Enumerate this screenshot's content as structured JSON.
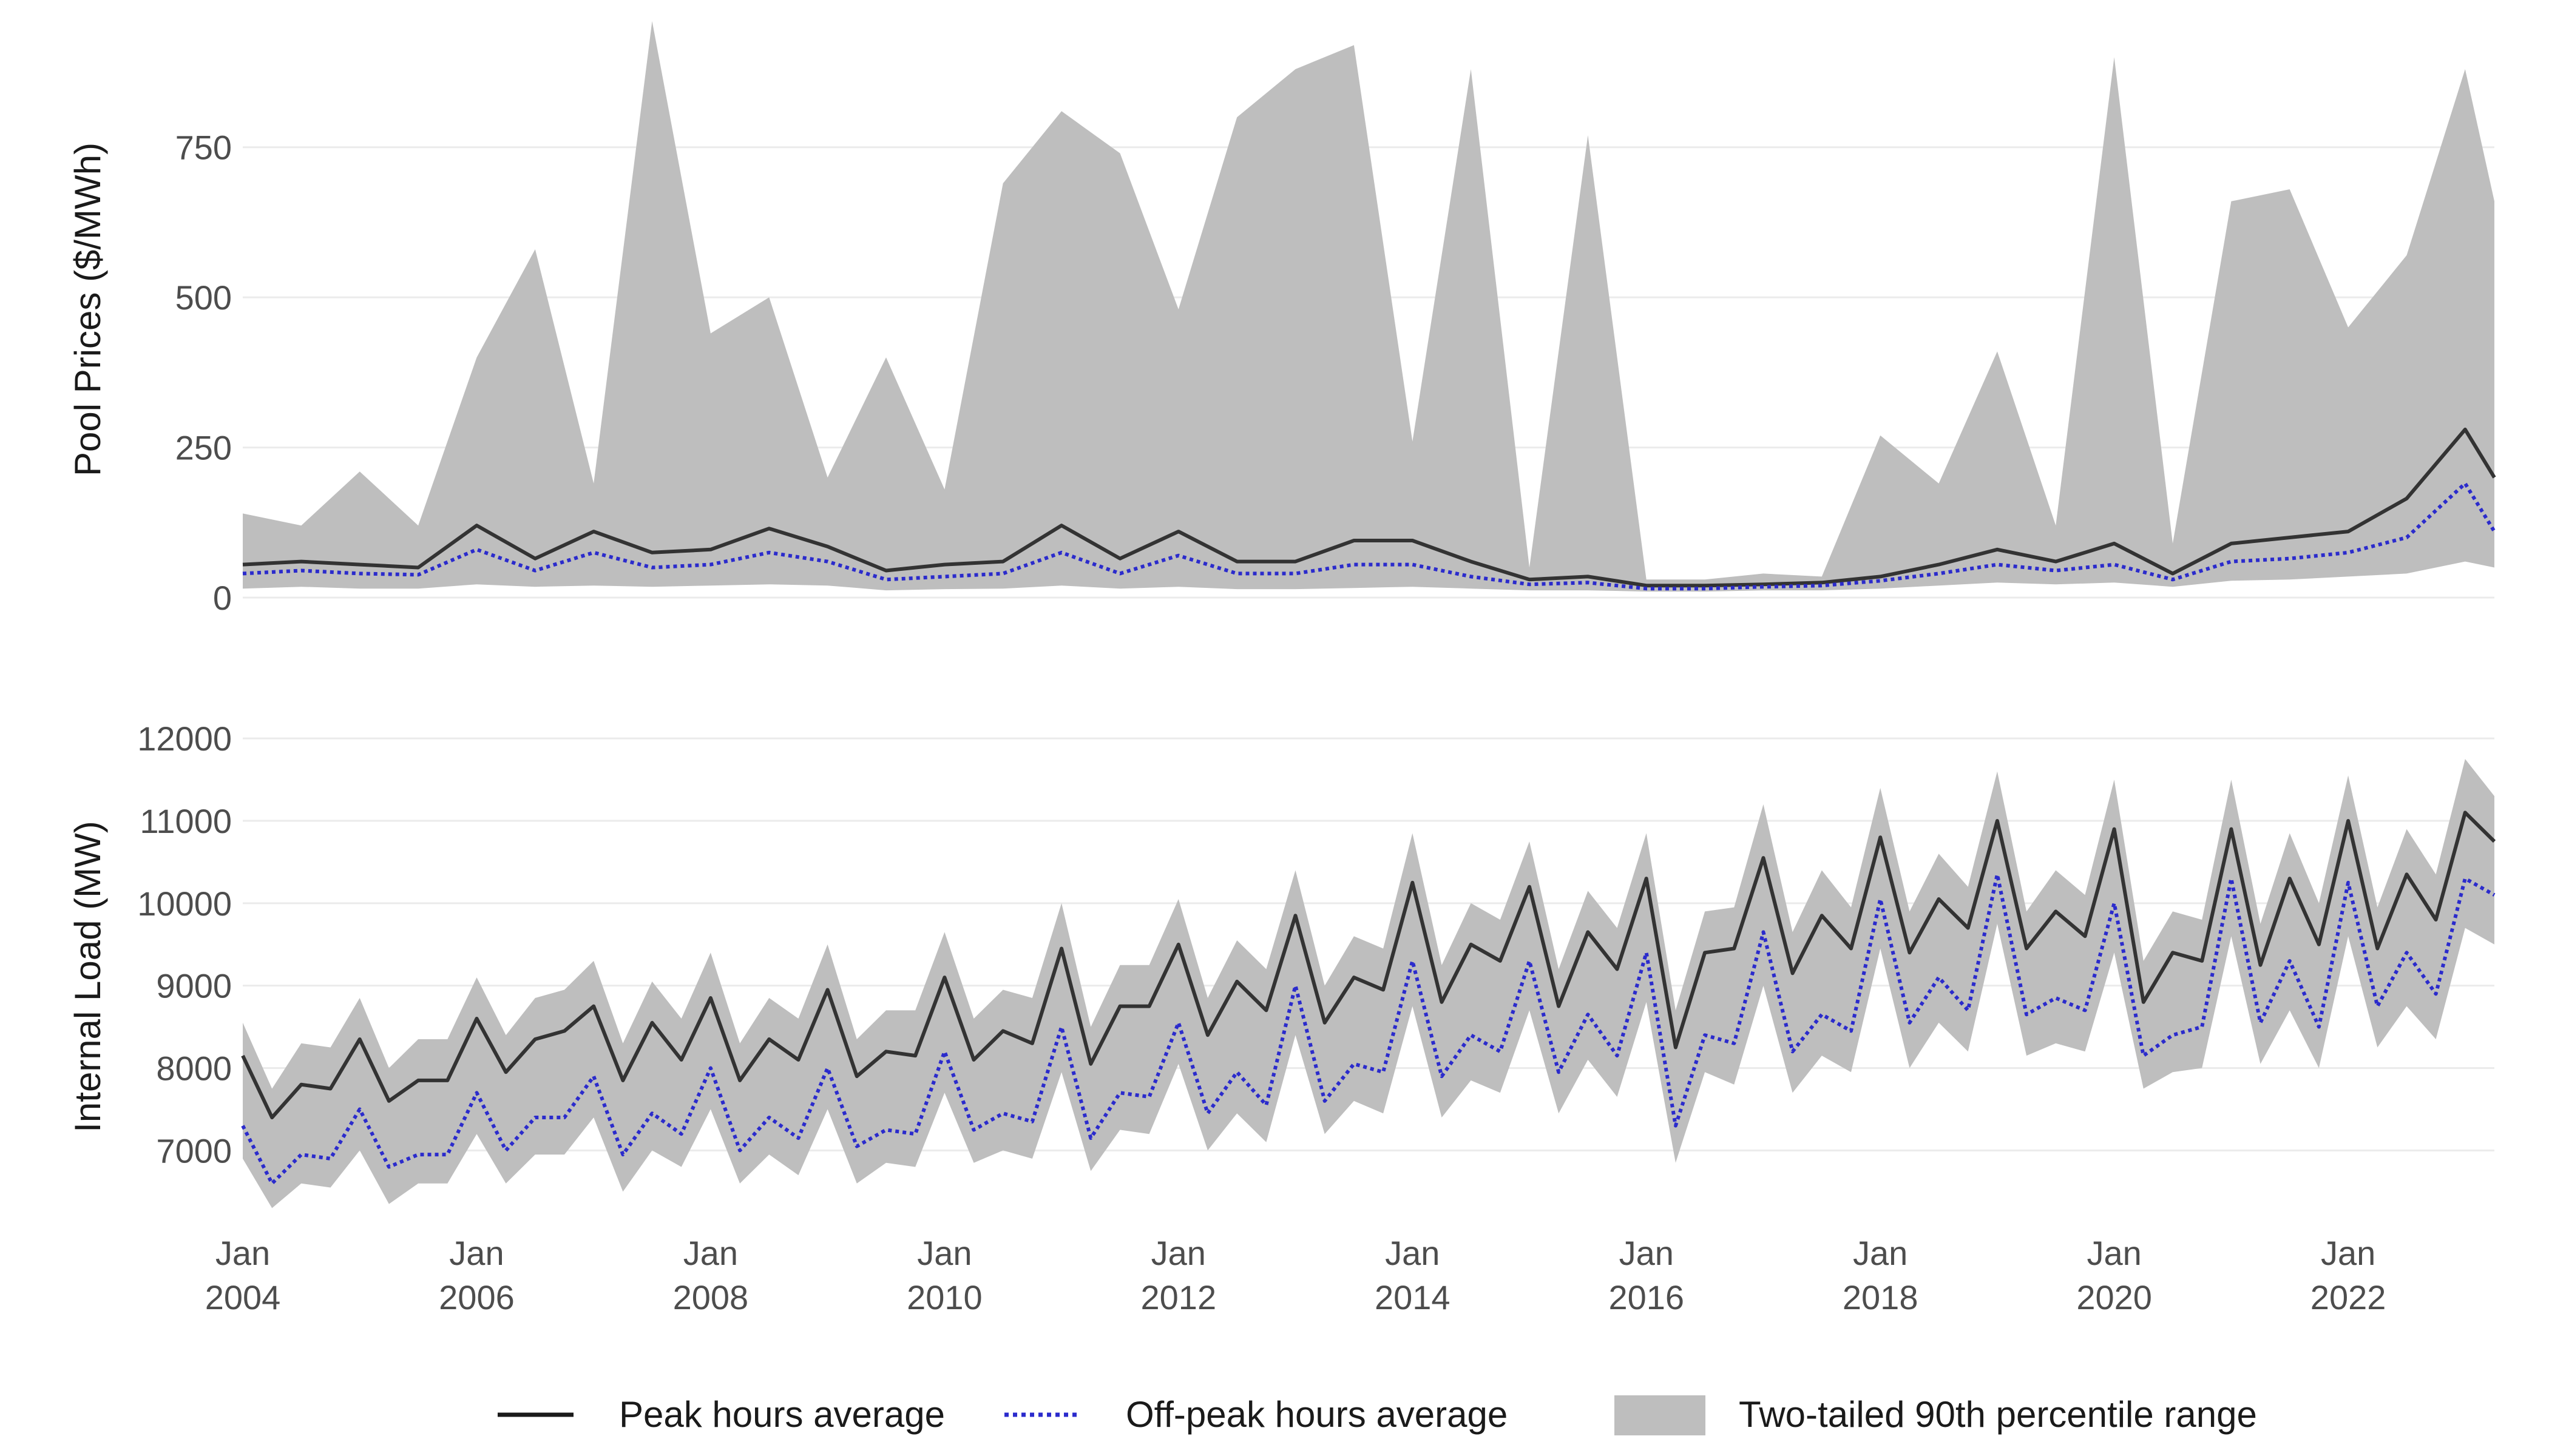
{
  "chart_data": [
    {
      "type": "line",
      "ylabel": "Pool Prices ($/MWh)",
      "xlim": [
        "2004-01",
        "2023-04"
      ],
      "ylim": [
        0,
        975
      ],
      "y_ticks": [
        0,
        250,
        500,
        750
      ],
      "y_tick_labels": [
        "0",
        "250",
        "500",
        "750"
      ],
      "grid": true,
      "series": [
        {
          "name": "Peak hours average",
          "style": "solid",
          "color": "#333333",
          "x": [
            "2004-01",
            "2004-07",
            "2005-01",
            "2005-07",
            "2006-01",
            "2006-07",
            "2007-01",
            "2007-07",
            "2008-01",
            "2008-07",
            "2009-01",
            "2009-07",
            "2010-01",
            "2010-07",
            "2011-01",
            "2011-07",
            "2012-01",
            "2012-07",
            "2013-01",
            "2013-07",
            "2014-01",
            "2014-07",
            "2015-01",
            "2015-07",
            "2016-01",
            "2016-07",
            "2017-01",
            "2017-07",
            "2018-01",
            "2018-07",
            "2019-01",
            "2019-07",
            "2020-01",
            "2020-07",
            "2021-01",
            "2021-07",
            "2022-01",
            "2022-07",
            "2023-01",
            "2023-04"
          ],
          "values": [
            55,
            60,
            55,
            50,
            120,
            65,
            110,
            75,
            80,
            115,
            85,
            45,
            55,
            60,
            120,
            65,
            110,
            60,
            60,
            95,
            95,
            60,
            30,
            35,
            20,
            20,
            22,
            25,
            35,
            55,
            80,
            60,
            90,
            40,
            90,
            100,
            110,
            165,
            280,
            200
          ]
        },
        {
          "name": "Off-peak hours average",
          "style": "dotted",
          "color": "#2b2bcc",
          "x": [
            "2004-01",
            "2004-07",
            "2005-01",
            "2005-07",
            "2006-01",
            "2006-07",
            "2007-01",
            "2007-07",
            "2008-01",
            "2008-07",
            "2009-01",
            "2009-07",
            "2010-01",
            "2010-07",
            "2011-01",
            "2011-07",
            "2012-01",
            "2012-07",
            "2013-01",
            "2013-07",
            "2014-01",
            "2014-07",
            "2015-01",
            "2015-07",
            "2016-01",
            "2016-07",
            "2017-01",
            "2017-07",
            "2018-01",
            "2018-07",
            "2019-01",
            "2019-07",
            "2020-01",
            "2020-07",
            "2021-01",
            "2021-07",
            "2022-01",
            "2022-07",
            "2023-01",
            "2023-04"
          ],
          "values": [
            40,
            45,
            40,
            38,
            80,
            45,
            75,
            50,
            55,
            75,
            60,
            30,
            35,
            40,
            75,
            40,
            70,
            40,
            40,
            55,
            55,
            35,
            22,
            25,
            15,
            15,
            18,
            20,
            28,
            40,
            55,
            45,
            55,
            30,
            60,
            65,
            75,
            100,
            190,
            110
          ]
        },
        {
          "name": "Two-tailed 90th percentile range",
          "type": "area",
          "color": "#bebebe",
          "x": [
            "2004-01",
            "2004-07",
            "2005-01",
            "2005-07",
            "2006-01",
            "2006-07",
            "2007-01",
            "2007-07",
            "2008-01",
            "2008-07",
            "2009-01",
            "2009-07",
            "2010-01",
            "2010-07",
            "2011-01",
            "2011-07",
            "2012-01",
            "2012-07",
            "2013-01",
            "2013-07",
            "2014-01",
            "2014-07",
            "2015-01",
            "2015-07",
            "2016-01",
            "2016-07",
            "2017-01",
            "2017-07",
            "2018-01",
            "2018-07",
            "2019-01",
            "2019-07",
            "2020-01",
            "2020-07",
            "2021-01",
            "2021-07",
            "2022-01",
            "2022-07",
            "2023-01",
            "2023-04"
          ],
          "lower": [
            15,
            18,
            15,
            15,
            22,
            18,
            20,
            18,
            20,
            22,
            20,
            12,
            14,
            15,
            20,
            15,
            18,
            14,
            14,
            16,
            18,
            15,
            12,
            12,
            10,
            10,
            12,
            12,
            15,
            20,
            25,
            22,
            25,
            18,
            28,
            30,
            35,
            40,
            60,
            50
          ],
          "upper": [
            140,
            120,
            210,
            120,
            400,
            580,
            190,
            960,
            440,
            500,
            200,
            400,
            180,
            690,
            810,
            740,
            480,
            800,
            880,
            920,
            260,
            880,
            50,
            770,
            30,
            30,
            40,
            35,
            270,
            190,
            410,
            120,
            900,
            90,
            660,
            680,
            450,
            570,
            880,
            660
          ]
        }
      ]
    },
    {
      "type": "line",
      "ylabel": "Internal Load (MW)",
      "xlim": [
        "2004-01",
        "2023-04"
      ],
      "ylim": [
        6200,
        12200
      ],
      "y_ticks": [
        7000,
        8000,
        9000,
        10000,
        11000,
        12000
      ],
      "y_tick_labels": [
        "7000",
        "8000",
        "9000",
        "10000",
        "11000",
        "12000"
      ],
      "x_tick_labels": [
        [
          "Jan",
          "2004"
        ],
        [
          "Jan",
          "2006"
        ],
        [
          "Jan",
          "2008"
        ],
        [
          "Jan",
          "2010"
        ],
        [
          "Jan",
          "2012"
        ],
        [
          "Jan",
          "2014"
        ],
        [
          "Jan",
          "2016"
        ],
        [
          "Jan",
          "2018"
        ],
        [
          "Jan",
          "2020"
        ],
        [
          "Jan",
          "2022"
        ]
      ],
      "x_ticks": [
        "2004-01",
        "2006-01",
        "2008-01",
        "2010-01",
        "2012-01",
        "2014-01",
        "2016-01",
        "2018-01",
        "2020-01",
        "2022-01"
      ],
      "grid": true,
      "series": [
        {
          "name": "Peak hours average",
          "style": "solid",
          "color": "#333333",
          "x": [
            "2004-01",
            "2004-04",
            "2004-07",
            "2004-10",
            "2005-01",
            "2005-04",
            "2005-07",
            "2005-10",
            "2006-01",
            "2006-04",
            "2006-07",
            "2006-10",
            "2007-01",
            "2007-04",
            "2007-07",
            "2007-10",
            "2008-01",
            "2008-04",
            "2008-07",
            "2008-10",
            "2009-01",
            "2009-04",
            "2009-07",
            "2009-10",
            "2010-01",
            "2010-04",
            "2010-07",
            "2010-10",
            "2011-01",
            "2011-04",
            "2011-07",
            "2011-10",
            "2012-01",
            "2012-04",
            "2012-07",
            "2012-10",
            "2013-01",
            "2013-04",
            "2013-07",
            "2013-10",
            "2014-01",
            "2014-04",
            "2014-07",
            "2014-10",
            "2015-01",
            "2015-04",
            "2015-07",
            "2015-10",
            "2016-01",
            "2016-04",
            "2016-07",
            "2016-10",
            "2017-01",
            "2017-04",
            "2017-07",
            "2017-10",
            "2018-01",
            "2018-04",
            "2018-07",
            "2018-10",
            "2019-01",
            "2019-04",
            "2019-07",
            "2019-10",
            "2020-01",
            "2020-04",
            "2020-07",
            "2020-10",
            "2021-01",
            "2021-04",
            "2021-07",
            "2021-10",
            "2022-01",
            "2022-04",
            "2022-07",
            "2022-10",
            "2023-01",
            "2023-04"
          ],
          "values": [
            8150,
            7400,
            7800,
            7750,
            8350,
            7600,
            7850,
            7850,
            8600,
            7950,
            8350,
            8450,
            8750,
            7850,
            8550,
            8100,
            8850,
            7850,
            8350,
            8100,
            8950,
            7900,
            8200,
            8150,
            9100,
            8100,
            8450,
            8300,
            9450,
            8050,
            8750,
            8750,
            9500,
            8400,
            9050,
            8700,
            9850,
            8550,
            9100,
            8950,
            10250,
            8800,
            9500,
            9300,
            10200,
            8750,
            9650,
            9200,
            10300,
            8250,
            9400,
            9450,
            10550,
            9150,
            9850,
            9450,
            10800,
            9400,
            10050,
            9700,
            11000,
            9450,
            9900,
            9600,
            10900,
            8800,
            9400,
            9300,
            10900,
            9250,
            10300,
            9500,
            11000,
            9450,
            10350,
            9800,
            11100,
            10750
          ]
        },
        {
          "name": "Off-peak hours average",
          "style": "dotted",
          "color": "#2b2bcc",
          "x": [
            "2004-01",
            "2004-04",
            "2004-07",
            "2004-10",
            "2005-01",
            "2005-04",
            "2005-07",
            "2005-10",
            "2006-01",
            "2006-04",
            "2006-07",
            "2006-10",
            "2007-01",
            "2007-04",
            "2007-07",
            "2007-10",
            "2008-01",
            "2008-04",
            "2008-07",
            "2008-10",
            "2009-01",
            "2009-04",
            "2009-07",
            "2009-10",
            "2010-01",
            "2010-04",
            "2010-07",
            "2010-10",
            "2011-01",
            "2011-04",
            "2011-07",
            "2011-10",
            "2012-01",
            "2012-04",
            "2012-07",
            "2012-10",
            "2013-01",
            "2013-04",
            "2013-07",
            "2013-10",
            "2014-01",
            "2014-04",
            "2014-07",
            "2014-10",
            "2015-01",
            "2015-04",
            "2015-07",
            "2015-10",
            "2016-01",
            "2016-04",
            "2016-07",
            "2016-10",
            "2017-01",
            "2017-04",
            "2017-07",
            "2017-10",
            "2018-01",
            "2018-04",
            "2018-07",
            "2018-10",
            "2019-01",
            "2019-04",
            "2019-07",
            "2019-10",
            "2020-01",
            "2020-04",
            "2020-07",
            "2020-10",
            "2021-01",
            "2021-04",
            "2021-07",
            "2021-10",
            "2022-01",
            "2022-04",
            "2022-07",
            "2022-10",
            "2023-01",
            "2023-04"
          ],
          "values": [
            7300,
            6600,
            6950,
            6900,
            7500,
            6800,
            6950,
            6950,
            7700,
            7000,
            7400,
            7400,
            7900,
            6950,
            7450,
            7200,
            8000,
            7000,
            7400,
            7150,
            8000,
            7050,
            7250,
            7200,
            8200,
            7250,
            7450,
            7350,
            8500,
            7150,
            7700,
            7650,
            8550,
            7450,
            7950,
            7550,
            9000,
            7600,
            8050,
            7950,
            9300,
            7900,
            8400,
            8200,
            9300,
            7950,
            8650,
            8150,
            9400,
            7300,
            8400,
            8300,
            9650,
            8200,
            8650,
            8450,
            10050,
            8550,
            9100,
            8700,
            10350,
            8650,
            8850,
            8700,
            10000,
            8150,
            8400,
            8500,
            10300,
            8550,
            9300,
            8500,
            10250,
            8750,
            9400,
            8900,
            10300,
            10100
          ]
        },
        {
          "name": "Two-tailed 90th percentile range",
          "type": "area",
          "color": "#bebebe",
          "x": [
            "2004-01",
            "2004-04",
            "2004-07",
            "2004-10",
            "2005-01",
            "2005-04",
            "2005-07",
            "2005-10",
            "2006-01",
            "2006-04",
            "2006-07",
            "2006-10",
            "2007-01",
            "2007-04",
            "2007-07",
            "2007-10",
            "2008-01",
            "2008-04",
            "2008-07",
            "2008-10",
            "2009-01",
            "2009-04",
            "2009-07",
            "2009-10",
            "2010-01",
            "2010-04",
            "2010-07",
            "2010-10",
            "2011-01",
            "2011-04",
            "2011-07",
            "2011-10",
            "2012-01",
            "2012-04",
            "2012-07",
            "2012-10",
            "2013-01",
            "2013-04",
            "2013-07",
            "2013-10",
            "2014-01",
            "2014-04",
            "2014-07",
            "2014-10",
            "2015-01",
            "2015-04",
            "2015-07",
            "2015-10",
            "2016-01",
            "2016-04",
            "2016-07",
            "2016-10",
            "2017-01",
            "2017-04",
            "2017-07",
            "2017-10",
            "2018-01",
            "2018-04",
            "2018-07",
            "2018-10",
            "2019-01",
            "2019-04",
            "2019-07",
            "2019-10",
            "2020-01",
            "2020-04",
            "2020-07",
            "2020-10",
            "2021-01",
            "2021-04",
            "2021-07",
            "2021-10",
            "2022-01",
            "2022-04",
            "2022-07",
            "2022-10",
            "2023-01",
            "2023-04"
          ],
          "lower": [
            6900,
            6300,
            6600,
            6550,
            7000,
            6350,
            6600,
            6600,
            7200,
            6600,
            6950,
            6950,
            7400,
            6500,
            7000,
            6800,
            7500,
            6600,
            6950,
            6700,
            7500,
            6600,
            6850,
            6800,
            7700,
            6850,
            7000,
            6900,
            7950,
            6750,
            7250,
            7200,
            8050,
            7000,
            7450,
            7100,
            8400,
            7200,
            7600,
            7450,
            8750,
            7400,
            7850,
            7700,
            8700,
            7450,
            8100,
            7650,
            8800,
            6850,
            7950,
            7800,
            9000,
            7700,
            8150,
            7950,
            9450,
            8000,
            8550,
            8200,
            9750,
            8150,
            8300,
            8200,
            9400,
            7750,
            7950,
            8000,
            9600,
            8050,
            8700,
            8000,
            9600,
            8250,
            8750,
            8350,
            9700,
            9500
          ],
          "upper": [
            8550,
            7750,
            8300,
            8250,
            8850,
            8000,
            8350,
            8350,
            9100,
            8400,
            8850,
            8950,
            9300,
            8300,
            9050,
            8600,
            9400,
            8300,
            8850,
            8600,
            9500,
            8350,
            8700,
            8700,
            9650,
            8600,
            8950,
            8850,
            10000,
            8500,
            9250,
            9250,
            10050,
            8850,
            9550,
            9200,
            10400,
            9000,
            9600,
            9450,
            10850,
            9250,
            10000,
            9800,
            10750,
            9200,
            10150,
            9700,
            10850,
            8700,
            9900,
            9950,
            11200,
            9650,
            10400,
            9950,
            11400,
            9900,
            10600,
            10200,
            11600,
            9900,
            10400,
            10100,
            11500,
            9300,
            9900,
            9800,
            11500,
            9750,
            10850,
            10000,
            11550,
            9950,
            10900,
            10350,
            11750,
            11300
          ]
        }
      ]
    }
  ],
  "legend": [
    {
      "label": "Peak hours average",
      "style": "solid",
      "color": "#1a1a1a"
    },
    {
      "label": "Off-peak hours average",
      "style": "dotted",
      "color": "#2b2bcc"
    },
    {
      "label": "Two-tailed 90th percentile range",
      "style": "area",
      "color": "#bebebe"
    }
  ]
}
